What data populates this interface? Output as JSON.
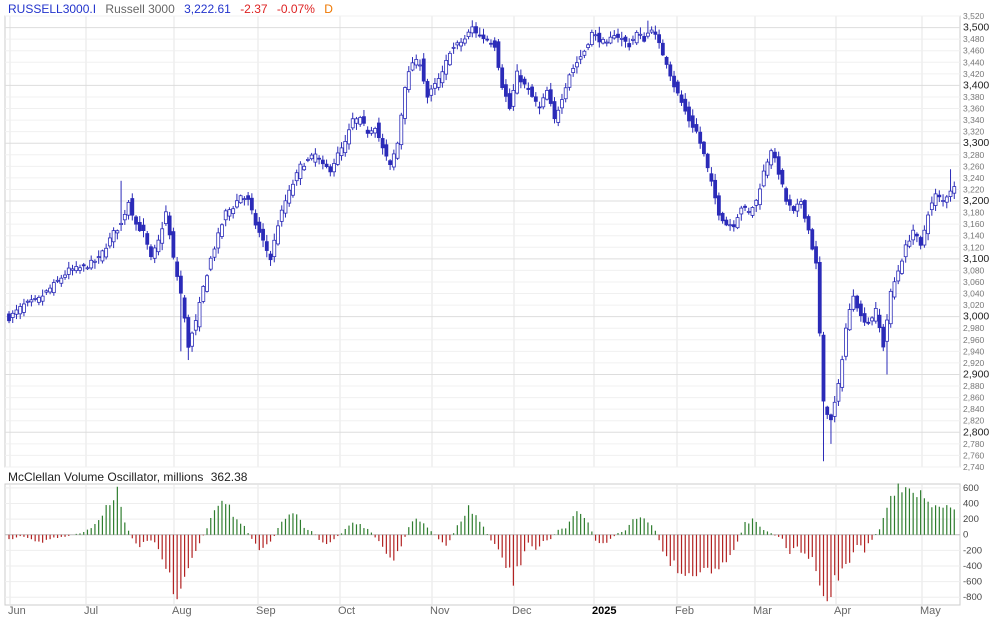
{
  "header": {
    "symbol": "RUSSELL3000.I",
    "name": "Russell 3000",
    "price": "3,222.61",
    "change": "-2.37",
    "change_pct": "-0.07%",
    "period": "D",
    "colors": {
      "symbol": "#2233cc",
      "name": "#666666",
      "price": "#2233cc",
      "change": "#dd2222",
      "period": "#ee7700"
    }
  },
  "oscillator_header": {
    "title": "McClellan Volume Oscillator, millions",
    "value": "362.38"
  },
  "chart_data": [
    {
      "type": "candlestick",
      "title": "RUSSELL3000.I Russell 3000",
      "x_labels": [
        "Jun",
        "Jul",
        "Aug",
        "Sep",
        "Oct",
        "Nov",
        "Dec",
        "2025",
        "Feb",
        "Mar",
        "Apr",
        "May"
      ],
      "ylim": [
        2740,
        3520
      ],
      "y_ticks": [
        2740,
        2760,
        2780,
        2800,
        2820,
        2840,
        2860,
        2880,
        2900,
        2920,
        2940,
        2960,
        2980,
        3000,
        3020,
        3040,
        3060,
        3080,
        3100,
        3120,
        3140,
        3160,
        3180,
        3200,
        3220,
        3240,
        3260,
        3280,
        3300,
        3320,
        3340,
        3360,
        3380,
        3400,
        3420,
        3440,
        3460,
        3480,
        3500,
        3520
      ],
      "y_major_ticks": [
        2800,
        2900,
        3000,
        3100,
        3200,
        3300,
        3400,
        3500
      ],
      "grid": true,
      "up_color": "#ffffff",
      "down_color": "#2b2bb8",
      "close_anchors": [
        [
          0,
          2998
        ],
        [
          4,
          3020
        ],
        [
          8,
          3030
        ],
        [
          12,
          3055
        ],
        [
          16,
          3080
        ],
        [
          20,
          3085
        ],
        [
          24,
          3100
        ],
        [
          28,
          3145
        ],
        [
          30,
          3160
        ],
        [
          32,
          3200
        ],
        [
          34,
          3160
        ],
        [
          36,
          3145
        ],
        [
          38,
          3100
        ],
        [
          40,
          3130
        ],
        [
          42,
          3180
        ],
        [
          44,
          3100
        ],
        [
          46,
          3040
        ],
        [
          48,
          2950
        ],
        [
          50,
          2990
        ],
        [
          52,
          3050
        ],
        [
          54,
          3100
        ],
        [
          56,
          3140
        ],
        [
          58,
          3180
        ],
        [
          60,
          3190
        ],
        [
          62,
          3210
        ],
        [
          64,
          3200
        ],
        [
          66,
          3160
        ],
        [
          68,
          3130
        ],
        [
          70,
          3100
        ],
        [
          72,
          3160
        ],
        [
          74,
          3200
        ],
        [
          76,
          3230
        ],
        [
          78,
          3260
        ],
        [
          80,
          3270
        ],
        [
          82,
          3280
        ],
        [
          84,
          3260
        ],
        [
          86,
          3255
        ],
        [
          88,
          3280
        ],
        [
          90,
          3300
        ],
        [
          92,
          3340
        ],
        [
          94,
          3340
        ],
        [
          96,
          3320
        ],
        [
          98,
          3330
        ],
        [
          100,
          3290
        ],
        [
          102,
          3260
        ],
        [
          104,
          3300
        ],
        [
          106,
          3400
        ],
        [
          108,
          3440
        ],
        [
          110,
          3440
        ],
        [
          112,
          3380
        ],
        [
          114,
          3400
        ],
        [
          116,
          3420
        ],
        [
          118,
          3460
        ],
        [
          120,
          3470
        ],
        [
          122,
          3480
        ],
        [
          124,
          3500
        ],
        [
          126,
          3485
        ],
        [
          128,
          3480
        ],
        [
          130,
          3470
        ],
        [
          132,
          3400
        ],
        [
          134,
          3360
        ],
        [
          136,
          3420
        ],
        [
          138,
          3400
        ],
        [
          140,
          3380
        ],
        [
          142,
          3360
        ],
        [
          144,
          3390
        ],
        [
          146,
          3340
        ],
        [
          148,
          3380
        ],
        [
          150,
          3420
        ],
        [
          152,
          3440
        ],
        [
          154,
          3460
        ],
        [
          156,
          3490
        ],
        [
          158,
          3480
        ],
        [
          160,
          3470
        ],
        [
          162,
          3490
        ],
        [
          164,
          3480
        ],
        [
          166,
          3470
        ],
        [
          168,
          3490
        ],
        [
          170,
          3480
        ],
        [
          172,
          3500
        ],
        [
          174,
          3470
        ],
        [
          176,
          3440
        ],
        [
          178,
          3400
        ],
        [
          180,
          3370
        ],
        [
          182,
          3340
        ],
        [
          184,
          3320
        ],
        [
          186,
          3280
        ],
        [
          188,
          3230
        ],
        [
          190,
          3180
        ],
        [
          192,
          3160
        ],
        [
          194,
          3160
        ],
        [
          196,
          3190
        ],
        [
          198,
          3180
        ],
        [
          200,
          3200
        ],
        [
          202,
          3250
        ],
        [
          204,
          3290
        ],
        [
          206,
          3250
        ],
        [
          208,
          3200
        ],
        [
          210,
          3180
        ],
        [
          212,
          3200
        ],
        [
          214,
          3150
        ],
        [
          216,
          3090
        ],
        [
          218,
          2850
        ],
        [
          220,
          2820
        ],
        [
          222,
          2880
        ],
        [
          224,
          2980
        ],
        [
          226,
          3040
        ],
        [
          228,
          3000
        ],
        [
          230,
          2990
        ],
        [
          232,
          3010
        ],
        [
          234,
          2950
        ],
        [
          236,
          3040
        ],
        [
          238,
          3080
        ],
        [
          240,
          3120
        ],
        [
          242,
          3150
        ],
        [
          244,
          3120
        ],
        [
          246,
          3180
        ],
        [
          248,
          3210
        ],
        [
          250,
          3200
        ],
        [
          252,
          3220
        ],
        [
          253,
          3222.61
        ]
      ],
      "extreme_lows": [
        [
          46,
          2940
        ],
        [
          48,
          2925
        ],
        [
          218,
          2750
        ],
        [
          220,
          2780
        ],
        [
          235,
          2900
        ]
      ],
      "extreme_highs": [
        [
          30,
          3235
        ],
        [
          126,
          3500
        ],
        [
          171,
          3512
        ],
        [
          252,
          3255
        ]
      ]
    },
    {
      "type": "bar",
      "title": "McClellan Volume Oscillator, millions",
      "ylim": [
        -900,
        650
      ],
      "y_ticks": [
        -800,
        -600,
        -400,
        -200,
        0,
        200,
        400,
        600
      ],
      "positive_color": "#2e7d2e",
      "negative_color": "#b22222",
      "value_anchors": [
        [
          0,
          -70
        ],
        [
          3,
          -20
        ],
        [
          6,
          -60
        ],
        [
          9,
          -100
        ],
        [
          12,
          -40
        ],
        [
          15,
          -30
        ],
        [
          17,
          0
        ],
        [
          19,
          20
        ],
        [
          21,
          60
        ],
        [
          23,
          120
        ],
        [
          25,
          300
        ],
        [
          27,
          400
        ],
        [
          29,
          550
        ],
        [
          31,
          150
        ],
        [
          33,
          -50
        ],
        [
          35,
          -150
        ],
        [
          37,
          -80
        ],
        [
          39,
          -100
        ],
        [
          41,
          -300
        ],
        [
          43,
          -600
        ],
        [
          45,
          -740
        ],
        [
          47,
          -550
        ],
        [
          49,
          -300
        ],
        [
          51,
          -100
        ],
        [
          53,
          80
        ],
        [
          55,
          300
        ],
        [
          57,
          400
        ],
        [
          59,
          350
        ],
        [
          61,
          200
        ],
        [
          63,
          100
        ],
        [
          65,
          -50
        ],
        [
          67,
          -200
        ],
        [
          69,
          -150
        ],
        [
          71,
          -20
        ],
        [
          73,
          200
        ],
        [
          75,
          300
        ],
        [
          77,
          250
        ],
        [
          79,
          100
        ],
        [
          81,
          50
        ],
        [
          83,
          -60
        ],
        [
          85,
          -120
        ],
        [
          87,
          -50
        ],
        [
          89,
          20
        ],
        [
          91,
          120
        ],
        [
          93,
          150
        ],
        [
          95,
          100
        ],
        [
          97,
          30
        ],
        [
          99,
          -100
        ],
        [
          101,
          -250
        ],
        [
          103,
          -300
        ],
        [
          105,
          -150
        ],
        [
          107,
          100
        ],
        [
          109,
          200
        ],
        [
          111,
          150
        ],
        [
          113,
          50
        ],
        [
          115,
          -60
        ],
        [
          117,
          -150
        ],
        [
          119,
          20
        ],
        [
          121,
          200
        ],
        [
          123,
          350
        ],
        [
          125,
          250
        ],
        [
          127,
          100
        ],
        [
          129,
          -80
        ],
        [
          131,
          -200
        ],
        [
          133,
          -400
        ],
        [
          135,
          -600
        ],
        [
          137,
          -350
        ],
        [
          139,
          -100
        ],
        [
          141,
          -200
        ],
        [
          143,
          -100
        ],
        [
          145,
          -50
        ],
        [
          147,
          60
        ],
        [
          149,
          100
        ],
        [
          151,
          250
        ],
        [
          153,
          280
        ],
        [
          155,
          180
        ],
        [
          157,
          -80
        ],
        [
          159,
          -120
        ],
        [
          161,
          -60
        ],
        [
          163,
          20
        ],
        [
          165,
          50
        ],
        [
          167,
          180
        ],
        [
          169,
          250
        ],
        [
          171,
          180
        ],
        [
          173,
          50
        ],
        [
          175,
          -200
        ],
        [
          177,
          -350
        ],
        [
          179,
          -450
        ],
        [
          181,
          -520
        ],
        [
          183,
          -560
        ],
        [
          185,
          -420
        ],
        [
          187,
          -420
        ],
        [
          189,
          -500
        ],
        [
          191,
          -380
        ],
        [
          193,
          -250
        ],
        [
          195,
          -100
        ],
        [
          197,
          150
        ],
        [
          199,
          200
        ],
        [
          201,
          100
        ],
        [
          203,
          50
        ],
        [
          205,
          -10
        ],
        [
          207,
          -60
        ],
        [
          209,
          -250
        ],
        [
          211,
          -150
        ],
        [
          213,
          -300
        ],
        [
          215,
          -320
        ],
        [
          217,
          -700
        ],
        [
          219,
          -870
        ],
        [
          221,
          -600
        ],
        [
          223,
          -450
        ],
        [
          225,
          -320
        ],
        [
          227,
          -120
        ],
        [
          229,
          -200
        ],
        [
          231,
          -60
        ],
        [
          233,
          80
        ],
        [
          235,
          350
        ],
        [
          237,
          600
        ],
        [
          239,
          580
        ],
        [
          241,
          550
        ],
        [
          243,
          480
        ],
        [
          245,
          550
        ],
        [
          247,
          320
        ],
        [
          249,
          400
        ],
        [
          251,
          350
        ],
        [
          253,
          362.38
        ]
      ]
    }
  ]
}
